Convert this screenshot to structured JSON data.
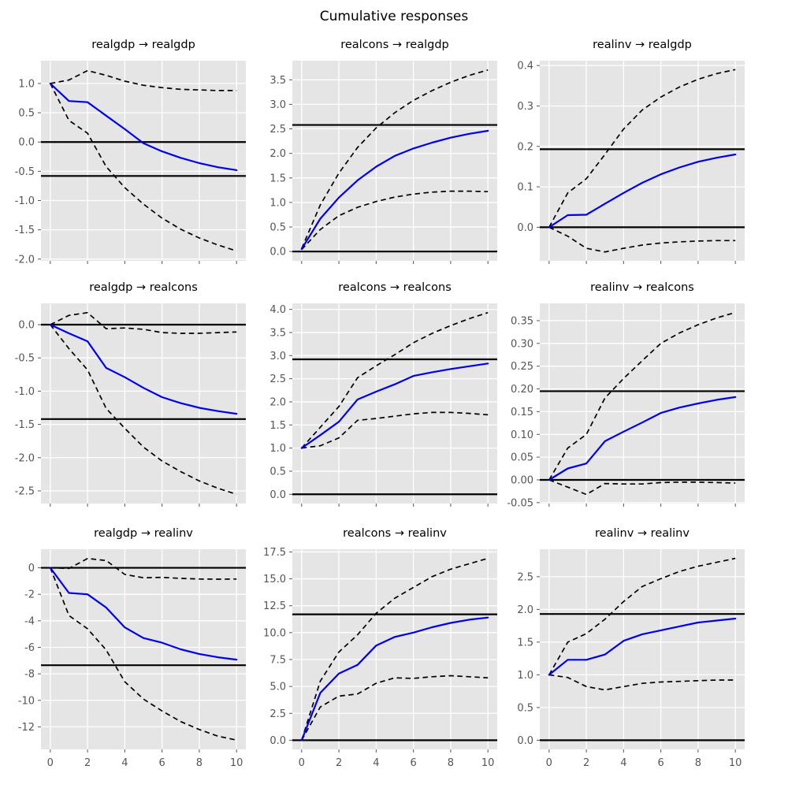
{
  "figure": {
    "title": "Cumulative responses"
  },
  "style": {
    "plot_bg": "#e5e5e5",
    "grid_color": "#ffffff",
    "response_color": "#0000ee",
    "band_color": "#000000",
    "hline_color": "#000000",
    "tick_text_color": "#555555"
  },
  "chart_data": [
    {
      "type": "line",
      "title": "realgdp → realgdp",
      "x": [
        0,
        1,
        2,
        3,
        4,
        5,
        6,
        7,
        8,
        9,
        10
      ],
      "series": [
        {
          "name": "cumulative response",
          "values": [
            1.0,
            0.7,
            0.68,
            0.45,
            0.22,
            -0.02,
            -0.16,
            -0.27,
            -0.36,
            -0.43,
            -0.48
          ]
        },
        {
          "name": "upper band",
          "values": [
            1.0,
            1.06,
            1.22,
            1.14,
            1.04,
            0.97,
            0.93,
            0.9,
            0.89,
            0.88,
            0.88
          ]
        },
        {
          "name": "lower band",
          "values": [
            1.0,
            0.37,
            0.15,
            -0.42,
            -0.78,
            -1.06,
            -1.3,
            -1.49,
            -1.64,
            -1.76,
            -1.86
          ]
        }
      ],
      "hlines": [
        0.0,
        -0.58
      ],
      "ylim": [
        -2.03,
        1.39
      ],
      "xlim": [
        -0.5,
        10.5
      ],
      "yticks": [
        "-2.0",
        "-1.5",
        "-1.0",
        "-0.5",
        "0.0",
        "0.5",
        "1.0"
      ],
      "xticks": [
        0,
        2,
        4,
        6,
        8,
        10
      ],
      "show_xlabels": false,
      "grid": true
    },
    {
      "type": "line",
      "title": "realcons → realgdp",
      "x": [
        0,
        1,
        2,
        3,
        4,
        5,
        6,
        7,
        8,
        9,
        10
      ],
      "series": [
        {
          "name": "cumulative response",
          "values": [
            0.05,
            0.67,
            1.1,
            1.45,
            1.73,
            1.95,
            2.1,
            2.22,
            2.32,
            2.4,
            2.46
          ]
        },
        {
          "name": "upper band",
          "values": [
            0.06,
            0.95,
            1.6,
            2.12,
            2.52,
            2.83,
            3.08,
            3.28,
            3.45,
            3.59,
            3.7
          ]
        },
        {
          "name": "lower band",
          "values": [
            0.04,
            0.45,
            0.73,
            0.9,
            1.02,
            1.11,
            1.17,
            1.21,
            1.23,
            1.23,
            1.22
          ]
        }
      ],
      "hlines": [
        0.0,
        2.58
      ],
      "ylim": [
        -0.19,
        3.89
      ],
      "xlim": [
        -0.5,
        10.5
      ],
      "yticks": [
        "0.0",
        "0.5",
        "1.0",
        "1.5",
        "2.0",
        "2.5",
        "3.0",
        "3.5"
      ],
      "xticks": [
        0,
        2,
        4,
        6,
        8,
        10
      ],
      "show_xlabels": false,
      "grid": true
    },
    {
      "type": "line",
      "title": "realinv → realgdp",
      "x": [
        0,
        1,
        2,
        3,
        4,
        5,
        6,
        7,
        8,
        9,
        10
      ],
      "series": [
        {
          "name": "cumulative response",
          "values": [
            0.0,
            0.03,
            0.031,
            0.058,
            0.085,
            0.11,
            0.131,
            0.148,
            0.162,
            0.172,
            0.18
          ]
        },
        {
          "name": "upper band",
          "values": [
            0.0,
            0.085,
            0.12,
            0.18,
            0.243,
            0.29,
            0.322,
            0.347,
            0.366,
            0.38,
            0.39
          ]
        },
        {
          "name": "lower band",
          "values": [
            0.0,
            -0.022,
            -0.052,
            -0.061,
            -0.052,
            -0.044,
            -0.039,
            -0.036,
            -0.034,
            -0.033,
            -0.033
          ]
        }
      ],
      "hlines": [
        0.0,
        0.193
      ],
      "ylim": [
        -0.083,
        0.412
      ],
      "xlim": [
        -0.5,
        10.5
      ],
      "yticks": [
        "0.0",
        "0.1",
        "0.2",
        "0.3",
        "0.4"
      ],
      "xticks": [
        0,
        2,
        4,
        6,
        8,
        10
      ],
      "show_xlabels": false,
      "grid": true
    },
    {
      "type": "line",
      "title": "realgdp → realcons",
      "x": [
        0,
        1,
        2,
        3,
        4,
        5,
        6,
        7,
        8,
        9,
        10
      ],
      "series": [
        {
          "name": "cumulative response",
          "values": [
            0.0,
            -0.13,
            -0.25,
            -0.65,
            -0.79,
            -0.95,
            -1.09,
            -1.18,
            -1.25,
            -1.3,
            -1.34
          ]
        },
        {
          "name": "upper band",
          "values": [
            0.0,
            0.14,
            0.18,
            -0.06,
            -0.05,
            -0.07,
            -0.12,
            -0.13,
            -0.13,
            -0.12,
            -0.11
          ]
        },
        {
          "name": "lower band",
          "values": [
            0.0,
            -0.36,
            -0.68,
            -1.26,
            -1.56,
            -1.84,
            -2.05,
            -2.21,
            -2.35,
            -2.46,
            -2.55
          ]
        }
      ],
      "hlines": [
        0.0,
        -1.42
      ],
      "ylim": [
        -2.69,
        0.32
      ],
      "xlim": [
        -0.5,
        10.5
      ],
      "yticks": [
        "-2.5",
        "-2.0",
        "-1.5",
        "-1.0",
        "-0.5",
        "0.0"
      ],
      "xticks": [
        0,
        2,
        4,
        6,
        8,
        10
      ],
      "show_xlabels": false,
      "grid": true
    },
    {
      "type": "line",
      "title": "realcons → realcons",
      "x": [
        0,
        1,
        2,
        3,
        4,
        5,
        6,
        7,
        8,
        9,
        10
      ],
      "series": [
        {
          "name": "cumulative response",
          "values": [
            1.0,
            1.28,
            1.57,
            2.05,
            2.22,
            2.38,
            2.56,
            2.64,
            2.71,
            2.77,
            2.83
          ]
        },
        {
          "name": "upper band",
          "values": [
            1.0,
            1.45,
            1.9,
            2.52,
            2.78,
            3.02,
            3.28,
            3.48,
            3.65,
            3.8,
            3.93
          ]
        },
        {
          "name": "lower band",
          "values": [
            1.0,
            1.05,
            1.22,
            1.6,
            1.64,
            1.69,
            1.74,
            1.77,
            1.77,
            1.75,
            1.72
          ]
        }
      ],
      "hlines": [
        0.0,
        2.92
      ],
      "ylim": [
        -0.2,
        4.13
      ],
      "xlim": [
        -0.5,
        10.5
      ],
      "yticks": [
        "0.0",
        "0.5",
        "1.0",
        "1.5",
        "2.0",
        "2.5",
        "3.0",
        "3.5",
        "4.0"
      ],
      "xticks": [
        0,
        2,
        4,
        6,
        8,
        10
      ],
      "show_xlabels": false,
      "grid": true
    },
    {
      "type": "line",
      "title": "realinv → realcons",
      "x": [
        0,
        1,
        2,
        3,
        4,
        5,
        6,
        7,
        8,
        9,
        10
      ],
      "series": [
        {
          "name": "cumulative response",
          "values": [
            0.0,
            0.025,
            0.036,
            0.085,
            0.106,
            0.126,
            0.147,
            0.159,
            0.168,
            0.176,
            0.182
          ]
        },
        {
          "name": "upper band",
          "values": [
            0.0,
            0.07,
            0.1,
            0.18,
            0.223,
            0.262,
            0.3,
            0.323,
            0.341,
            0.356,
            0.368
          ]
        },
        {
          "name": "lower band",
          "values": [
            0.0,
            -0.016,
            -0.032,
            -0.008,
            -0.009,
            -0.009,
            -0.006,
            -0.005,
            -0.005,
            -0.006,
            -0.007
          ]
        }
      ],
      "hlines": [
        0.0,
        0.195
      ],
      "ylim": [
        -0.052,
        0.388
      ],
      "xlim": [
        -0.5,
        10.5
      ],
      "yticks": [
        "-0.05",
        "0.00",
        "0.05",
        "0.10",
        "0.15",
        "0.20",
        "0.25",
        "0.30",
        "0.35"
      ],
      "xticks": [
        0,
        2,
        4,
        6,
        8,
        10
      ],
      "show_xlabels": false,
      "grid": true
    },
    {
      "type": "line",
      "title": "realgdp → realinv",
      "x": [
        0,
        1,
        2,
        3,
        4,
        5,
        6,
        7,
        8,
        9,
        10
      ],
      "series": [
        {
          "name": "cumulative response",
          "values": [
            0.0,
            -1.9,
            -2.0,
            -3.0,
            -4.5,
            -5.3,
            -5.65,
            -6.15,
            -6.5,
            -6.75,
            -6.93
          ]
        },
        {
          "name": "upper band",
          "values": [
            0.0,
            -0.05,
            0.7,
            0.55,
            -0.5,
            -0.75,
            -0.72,
            -0.8,
            -0.85,
            -0.86,
            -0.85
          ]
        },
        {
          "name": "lower band",
          "values": [
            0.0,
            -3.6,
            -4.6,
            -6.2,
            -8.6,
            -9.9,
            -10.8,
            -11.6,
            -12.2,
            -12.7,
            -13.0
          ]
        }
      ],
      "hlines": [
        0.0,
        -7.35
      ],
      "ylim": [
        -13.7,
        1.4
      ],
      "xlim": [
        -0.5,
        10.5
      ],
      "yticks": [
        "-12",
        "-10",
        "-8",
        "-6",
        "-4",
        "-2",
        "0"
      ],
      "xticks": [
        0,
        2,
        4,
        6,
        8,
        10
      ],
      "show_xlabels": true,
      "grid": true
    },
    {
      "type": "line",
      "title": "realcons → realinv",
      "x": [
        0,
        1,
        2,
        3,
        4,
        5,
        6,
        7,
        8,
        9,
        10
      ],
      "series": [
        {
          "name": "cumulative response",
          "values": [
            0.0,
            4.4,
            6.2,
            7.0,
            8.8,
            9.6,
            10.0,
            10.5,
            10.9,
            11.2,
            11.4
          ]
        },
        {
          "name": "upper band",
          "values": [
            0.0,
            5.5,
            8.2,
            9.8,
            11.8,
            13.2,
            14.2,
            15.2,
            15.9,
            16.4,
            16.9
          ]
        },
        {
          "name": "lower band",
          "values": [
            0.0,
            3.1,
            4.1,
            4.3,
            5.3,
            5.8,
            5.75,
            5.9,
            6.0,
            5.9,
            5.8
          ]
        }
      ],
      "hlines": [
        0.0,
        11.7
      ],
      "ylim": [
        -0.85,
        17.75
      ],
      "xlim": [
        -0.5,
        10.5
      ],
      "yticks": [
        "0.0",
        "2.5",
        "5.0",
        "7.5",
        "10.0",
        "12.5",
        "15.0",
        "17.5"
      ],
      "xticks": [
        0,
        2,
        4,
        6,
        8,
        10
      ],
      "show_xlabels": true,
      "grid": true
    },
    {
      "type": "line",
      "title": "realinv → realinv",
      "x": [
        0,
        1,
        2,
        3,
        4,
        5,
        6,
        7,
        8,
        9,
        10
      ],
      "series": [
        {
          "name": "cumulative response",
          "values": [
            1.0,
            1.23,
            1.23,
            1.31,
            1.52,
            1.62,
            1.68,
            1.74,
            1.8,
            1.83,
            1.86
          ]
        },
        {
          "name": "upper band",
          "values": [
            1.0,
            1.5,
            1.63,
            1.85,
            2.12,
            2.35,
            2.47,
            2.58,
            2.66,
            2.72,
            2.78
          ]
        },
        {
          "name": "lower band",
          "values": [
            1.0,
            0.96,
            0.82,
            0.77,
            0.82,
            0.87,
            0.89,
            0.9,
            0.91,
            0.92,
            0.92
          ]
        }
      ],
      "hlines": [
        0.0,
        1.93
      ],
      "ylim": [
        -0.14,
        2.92
      ],
      "xlim": [
        -0.5,
        10.5
      ],
      "yticks": [
        "0.0",
        "0.5",
        "1.0",
        "1.5",
        "2.0",
        "2.5"
      ],
      "xticks": [
        0,
        2,
        4,
        6,
        8,
        10
      ],
      "show_xlabels": true,
      "grid": true
    }
  ]
}
